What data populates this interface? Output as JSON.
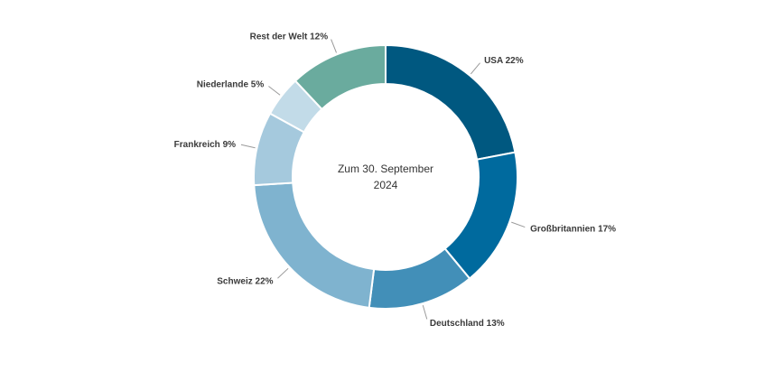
{
  "chart_data": {
    "type": "pie",
    "center_text": [
      "Zum 30. September",
      "2024"
    ],
    "slices": [
      {
        "label": "USA 22%",
        "value": 22,
        "color": "#005880"
      },
      {
        "label": "Großbritannien 17%",
        "value": 17,
        "color": "#006a9e"
      },
      {
        "label": "Deutschland 13%",
        "value": 13,
        "color": "#428fb8"
      },
      {
        "label": "Schweiz 22%",
        "value": 22,
        "color": "#7fb3cf"
      },
      {
        "label": "Frankreich 9%",
        "value": 9,
        "color": "#a5c9dd"
      },
      {
        "label": "Niederlande 5%",
        "value": 5,
        "color": "#c2dbe8"
      },
      {
        "label": "Rest der Welt 12%",
        "value": 12,
        "color": "#6aab9e"
      }
    ]
  }
}
